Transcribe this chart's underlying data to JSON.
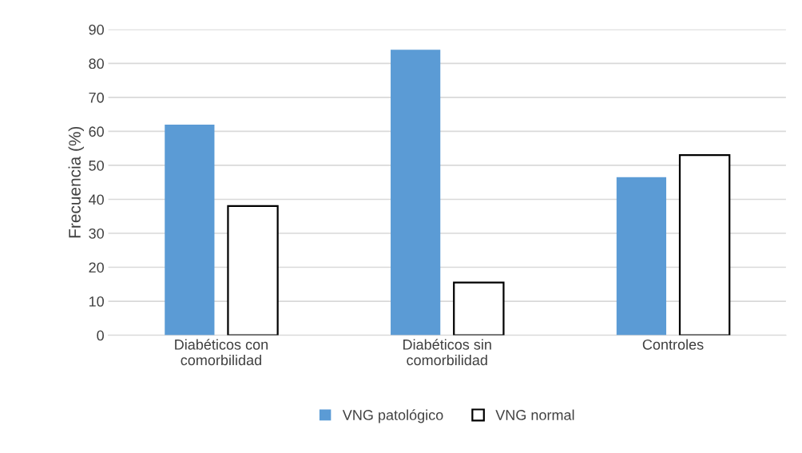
{
  "chart_data": {
    "type": "bar",
    "ylabel": "Frecuencia (%)",
    "categories": [
      "Diabéticos con\ncomorbilidad",
      "Diabéticos sin\ncomorbilidad",
      "Controles"
    ],
    "series": [
      {
        "name": "VNG patológico",
        "color": "#5b9bd5",
        "values": [
          62,
          84,
          46.5
        ]
      },
      {
        "name": "VNG normal",
        "color": "#ffffff",
        "values": [
          38,
          15.5,
          53
        ]
      }
    ],
    "ylim": [
      0,
      90
    ],
    "yticks": [
      0,
      10,
      20,
      30,
      40,
      50,
      60,
      70,
      80,
      90
    ],
    "grid": "y",
    "legend": "bottom"
  }
}
